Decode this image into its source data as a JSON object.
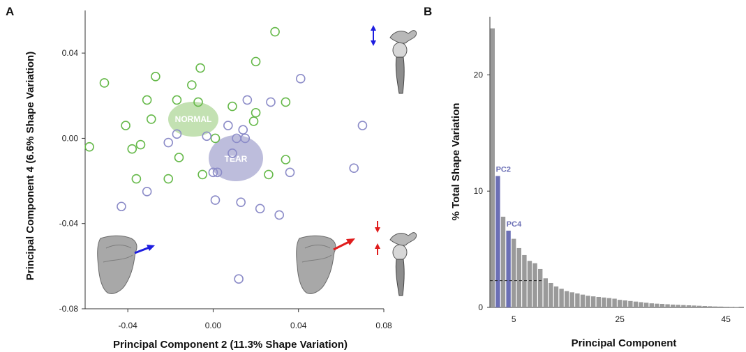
{
  "colors": {
    "normal_marker": "#66b94a",
    "tear_marker": "#8c8cc8",
    "normal_ellipse": "#b9dca4",
    "tear_ellipse": "#b1b1d6",
    "bar_default": "#9a9a9a",
    "bar_highlight": "#6b6fb5",
    "arrow_blue": "#1d1de0",
    "arrow_red": "#e01d1d",
    "bone": "#a8a8a8"
  },
  "panel_a": {
    "letter": "A",
    "xlabel": "Principal Component 2 (11.3% Shape Variation)",
    "ylabel": "Principal Component 4 (6.6% Shape Variation)",
    "clusters": {
      "normal_label": "NORMAL",
      "tear_label": "TEAR"
    },
    "icons": [
      "scapula-icon",
      "glenohumeral-joint-icon"
    ]
  },
  "panel_b": {
    "letter": "B",
    "xlabel": "Principal Component",
    "ylabel": "% Total Shape Variation",
    "annotations": [
      "PC2",
      "PC4"
    ]
  },
  "chart_data": [
    {
      "type": "scatter",
      "title": "",
      "xlabel": "Principal Component 2 (11.3% Shape Variation)",
      "ylabel": "Principal Component 4 (6.6% Shape Variation)",
      "xlim": [
        -0.06,
        0.08
      ],
      "ylim": [
        -0.08,
        0.06
      ],
      "x_ticks": [
        "-0.04",
        "0.00",
        "0.04",
        "0.08"
      ],
      "y_ticks": [
        "0.04",
        "0.00",
        "-0.04",
        "-0.08"
      ],
      "x_tick_values": [
        -0.04,
        0.0,
        0.04,
        0.08
      ],
      "y_tick_values": [
        0.04,
        0.0,
        -0.04,
        -0.08
      ],
      "grid": false,
      "series": [
        {
          "name": "NORMAL",
          "points": [
            [
              0.029,
              0.05
            ],
            [
              -0.051,
              0.026
            ],
            [
              -0.027,
              0.029
            ],
            [
              -0.006,
              0.033
            ],
            [
              -0.01,
              0.025
            ],
            [
              0.02,
              0.036
            ],
            [
              -0.031,
              0.018
            ],
            [
              -0.017,
              0.018
            ],
            [
              -0.007,
              0.017
            ],
            [
              0.009,
              0.015
            ],
            [
              0.034,
              0.017
            ],
            [
              -0.029,
              0.009
            ],
            [
              0.02,
              0.012
            ],
            [
              0.019,
              0.008
            ],
            [
              -0.041,
              0.006
            ],
            [
              -0.058,
              -0.004
            ],
            [
              -0.038,
              -0.005
            ],
            [
              -0.034,
              -0.003
            ],
            [
              0.001,
              0.0
            ],
            [
              -0.016,
              -0.009
            ],
            [
              -0.005,
              -0.017
            ],
            [
              -0.021,
              -0.019
            ],
            [
              -0.036,
              -0.019
            ],
            [
              0.026,
              -0.017
            ],
            [
              0.034,
              -0.01
            ]
          ]
        },
        {
          "name": "TEAR",
          "points": [
            [
              0.041,
              0.028
            ],
            [
              0.016,
              0.018
            ],
            [
              0.027,
              0.017
            ],
            [
              0.007,
              0.006
            ],
            [
              0.014,
              0.004
            ],
            [
              0.07,
              0.006
            ],
            [
              -0.017,
              0.002
            ],
            [
              -0.003,
              0.001
            ],
            [
              0.011,
              0.0
            ],
            [
              0.015,
              0.0
            ],
            [
              -0.021,
              -0.002
            ],
            [
              0.009,
              -0.007
            ],
            [
              0.0,
              -0.016
            ],
            [
              0.002,
              -0.016
            ],
            [
              0.036,
              -0.016
            ],
            [
              0.066,
              -0.014
            ],
            [
              -0.031,
              -0.025
            ],
            [
              0.001,
              -0.029
            ],
            [
              0.013,
              -0.03
            ],
            [
              -0.043,
              -0.032
            ],
            [
              0.022,
              -0.033
            ],
            [
              0.031,
              -0.036
            ],
            [
              0.012,
              -0.066
            ]
          ]
        }
      ],
      "cluster_means": [
        {
          "name": "NORMAL",
          "x": -0.008,
          "y": 0.009
        },
        {
          "name": "TEAR",
          "x": 0.011,
          "y": -0.01
        }
      ]
    },
    {
      "type": "bar",
      "title": "",
      "xlabel": "Principal Component",
      "ylabel": "% Total Shape Variation",
      "x_ticks": [
        "5",
        "25",
        "45"
      ],
      "x_tick_values": [
        5,
        25,
        45
      ],
      "y_ticks": [
        "0",
        "10",
        "20"
      ],
      "y_tick_values": [
        0,
        10,
        20
      ],
      "ylim": [
        0,
        25
      ],
      "categories": [
        1,
        2,
        3,
        4,
        5,
        6,
        7,
        8,
        9,
        10,
        11,
        12,
        13,
        14,
        15,
        16,
        17,
        18,
        19,
        20,
        21,
        22,
        23,
        24,
        25,
        26,
        27,
        28,
        29,
        30,
        31,
        32,
        33,
        34,
        35,
        36,
        37,
        38,
        39,
        40,
        41,
        42,
        43,
        44,
        45,
        46,
        47
      ],
      "values": [
        24.0,
        11.3,
        7.8,
        6.6,
        5.9,
        5.1,
        4.5,
        4.0,
        3.8,
        3.3,
        2.5,
        2.1,
        1.8,
        1.6,
        1.4,
        1.3,
        1.2,
        1.1,
        1.0,
        0.95,
        0.9,
        0.85,
        0.8,
        0.75,
        0.65,
        0.6,
        0.55,
        0.5,
        0.45,
        0.4,
        0.35,
        0.32,
        0.3,
        0.27,
        0.24,
        0.22,
        0.2,
        0.18,
        0.16,
        0.14,
        0.12,
        0.1,
        0.08,
        0.07,
        0.05,
        0.04,
        0.03
      ],
      "highlight": [
        2,
        4
      ],
      "annotations": [
        {
          "label": "PC2",
          "component": 2
        },
        {
          "label": "PC4",
          "component": 4
        }
      ],
      "threshold_line": {
        "value": 2.3,
        "from_component": 1,
        "to_component": 10,
        "style": "dashed"
      },
      "grid": false
    }
  ]
}
